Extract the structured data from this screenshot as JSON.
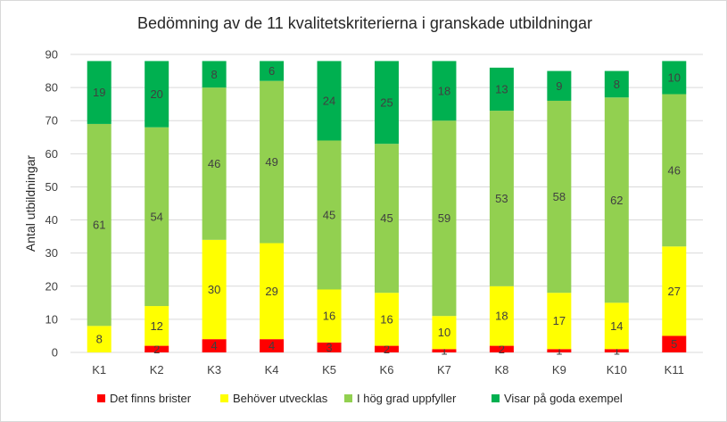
{
  "chart_data": {
    "type": "bar",
    "stacked": true,
    "title": "Bedömning av de 11 kvalitetskriterierna i granskade utbildningar",
    "xlabel": "",
    "ylabel": "Antal utbildningar",
    "ylim": [
      0,
      90
    ],
    "yticks": [
      0,
      10,
      20,
      30,
      40,
      50,
      60,
      70,
      80,
      90
    ],
    "grid": true,
    "legend_position": "bottom",
    "categories": [
      "K1",
      "K2",
      "K3",
      "K4",
      "K5",
      "K6",
      "K7",
      "K8",
      "K9",
      "K10",
      "K11"
    ],
    "series": [
      {
        "name": "Det finns brister",
        "color": "#ff0000",
        "values": [
          0,
          2,
          4,
          4,
          3,
          2,
          1,
          2,
          1,
          1,
          5
        ]
      },
      {
        "name": "Behöver utvecklas",
        "color": "#ffff00",
        "values": [
          8,
          12,
          30,
          29,
          16,
          16,
          10,
          18,
          17,
          14,
          27
        ]
      },
      {
        "name": "I hög grad uppfyller",
        "color": "#92d050",
        "values": [
          61,
          54,
          46,
          49,
          45,
          45,
          59,
          53,
          58,
          62,
          46
        ]
      },
      {
        "name": "Visar på goda exempel",
        "color": "#00b050",
        "values": [
          19,
          20,
          8,
          6,
          24,
          25,
          18,
          13,
          9,
          8,
          10
        ]
      }
    ]
  }
}
